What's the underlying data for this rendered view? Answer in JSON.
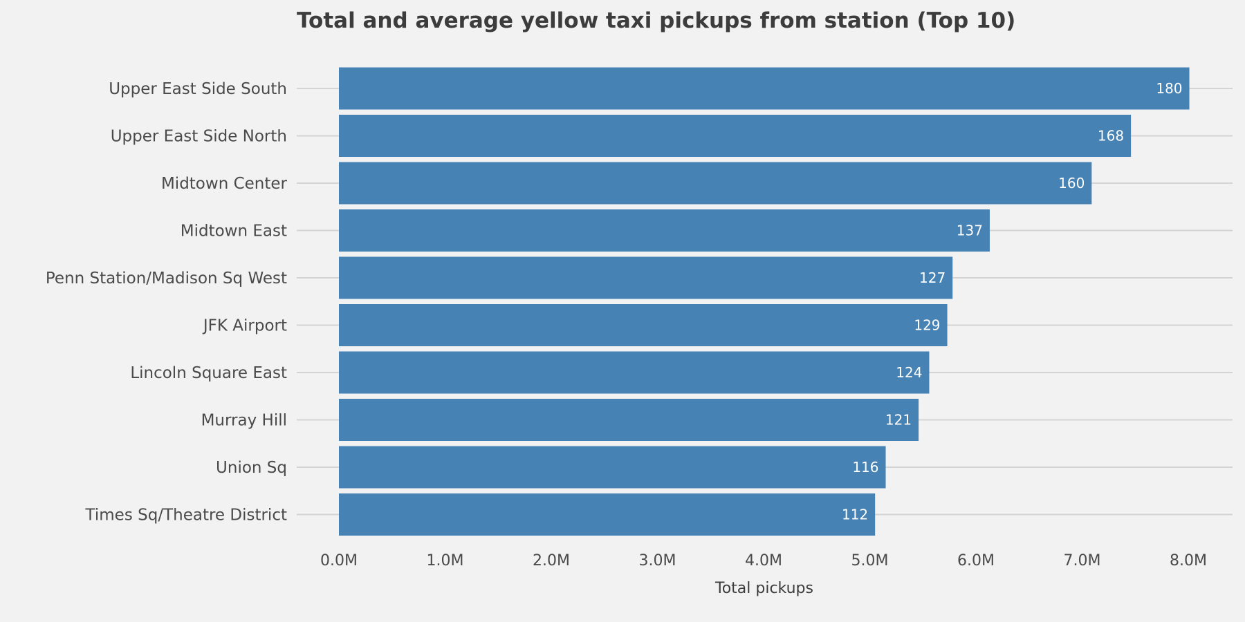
{
  "chart_data": {
    "type": "bar",
    "orientation": "horizontal",
    "title": "Total and average yellow taxi pickups from station (Top 10)",
    "xlabel": "Total pickups",
    "ylabel": "",
    "xlim": [
      0,
      8.4
    ],
    "x_ticks": [
      "0.0M",
      "1.0M",
      "2.0M",
      "3.0M",
      "4.0M",
      "5.0M",
      "6.0M",
      "7.0M",
      "8.0M"
    ],
    "categories": [
      "Upper East Side South",
      "Upper East Side North",
      "Midtown Center",
      "Midtown East",
      "Penn Station/Madison Sq West",
      "JFK Airport",
      "Lincoln Square East",
      "Murray Hill",
      "Union Sq",
      "Times Sq/Theatre District"
    ],
    "values": [
      8.01,
      7.46,
      7.09,
      6.13,
      5.78,
      5.73,
      5.56,
      5.46,
      5.15,
      5.05
    ],
    "value_unit": "M",
    "bar_labels": [
      "180",
      "168",
      "160",
      "137",
      "127",
      "129",
      "124",
      "121",
      "116",
      "112"
    ],
    "grid": "horizontal lines at categories",
    "legend": "none",
    "colors": {
      "bar": "#4682b4",
      "background": "#f2f2f2",
      "grid": "#d4d4d4",
      "text": "#4a4a4a",
      "title": "#3c3c3c",
      "bar_label": "#ffffff"
    }
  }
}
